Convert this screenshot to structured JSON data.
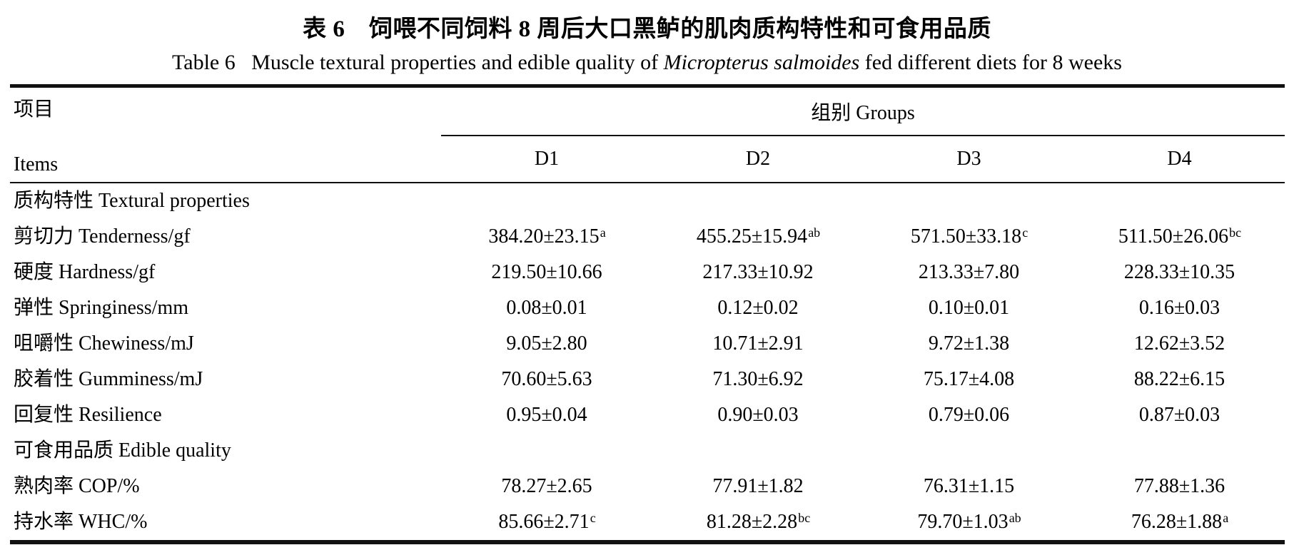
{
  "titles": {
    "zh": "表 6　饲喂不同饲料 8 周后大口黑鲈的肌肉质构特性和可食用品质",
    "en_prefix": "Table 6   Muscle textural properties and edible quality of ",
    "en_species": "Micropterus salmoides",
    "en_suffix": " fed different diets for 8 weeks"
  },
  "header": {
    "items_zh": "项目",
    "items_en": "Items",
    "groups_label": "组别 Groups",
    "group_columns": [
      "D1",
      "D2",
      "D3",
      "D4"
    ]
  },
  "rows": [
    {
      "type": "section",
      "label": "质构特性 Textural properties"
    },
    {
      "type": "data",
      "label": "剪切力 Tenderness/gf",
      "values": [
        {
          "text": "384.20±23.15",
          "sup": "a"
        },
        {
          "text": "455.25±15.94",
          "sup": "ab"
        },
        {
          "text": "571.50±33.18",
          "sup": "c"
        },
        {
          "text": "511.50±26.06",
          "sup": "bc"
        }
      ]
    },
    {
      "type": "data",
      "label": "硬度 Hardness/gf",
      "values": [
        {
          "text": "219.50±10.66"
        },
        {
          "text": "217.33±10.92"
        },
        {
          "text": "213.33±7.80"
        },
        {
          "text": "228.33±10.35"
        }
      ]
    },
    {
      "type": "data",
      "label": "弹性 Springiness/mm",
      "values": [
        {
          "text": "0.08±0.01"
        },
        {
          "text": "0.12±0.02"
        },
        {
          "text": "0.10±0.01"
        },
        {
          "text": "0.16±0.03"
        }
      ]
    },
    {
      "type": "data",
      "label": "咀嚼性 Chewiness/mJ",
      "values": [
        {
          "text": "9.05±2.80"
        },
        {
          "text": "10.71±2.91"
        },
        {
          "text": "9.72±1.38"
        },
        {
          "text": "12.62±3.52"
        }
      ]
    },
    {
      "type": "data",
      "label": "胶着性 Gumminess/mJ",
      "values": [
        {
          "text": "70.60±5.63"
        },
        {
          "text": "71.30±6.92"
        },
        {
          "text": "75.17±4.08"
        },
        {
          "text": "88.22±6.15"
        }
      ]
    },
    {
      "type": "data",
      "label": "回复性 Resilience",
      "values": [
        {
          "text": "0.95±0.04"
        },
        {
          "text": "0.90±0.03"
        },
        {
          "text": "0.79±0.06"
        },
        {
          "text": "0.87±0.03"
        }
      ]
    },
    {
      "type": "section",
      "label": "可食用品质 Edible quality"
    },
    {
      "type": "data",
      "label": "熟肉率 COP/%",
      "values": [
        {
          "text": "78.27±2.65"
        },
        {
          "text": "77.91±1.82"
        },
        {
          "text": "76.31±1.15"
        },
        {
          "text": "77.88±1.36"
        }
      ]
    },
    {
      "type": "data",
      "label": "持水率 WHC/%",
      "values": [
        {
          "text": "85.66±2.71",
          "sup": "c"
        },
        {
          "text": "81.28±2.28",
          "sup": "bc"
        },
        {
          "text": "79.70±1.03",
          "sup": "ab"
        },
        {
          "text": "76.28±1.88",
          "sup": "a"
        }
      ]
    }
  ]
}
